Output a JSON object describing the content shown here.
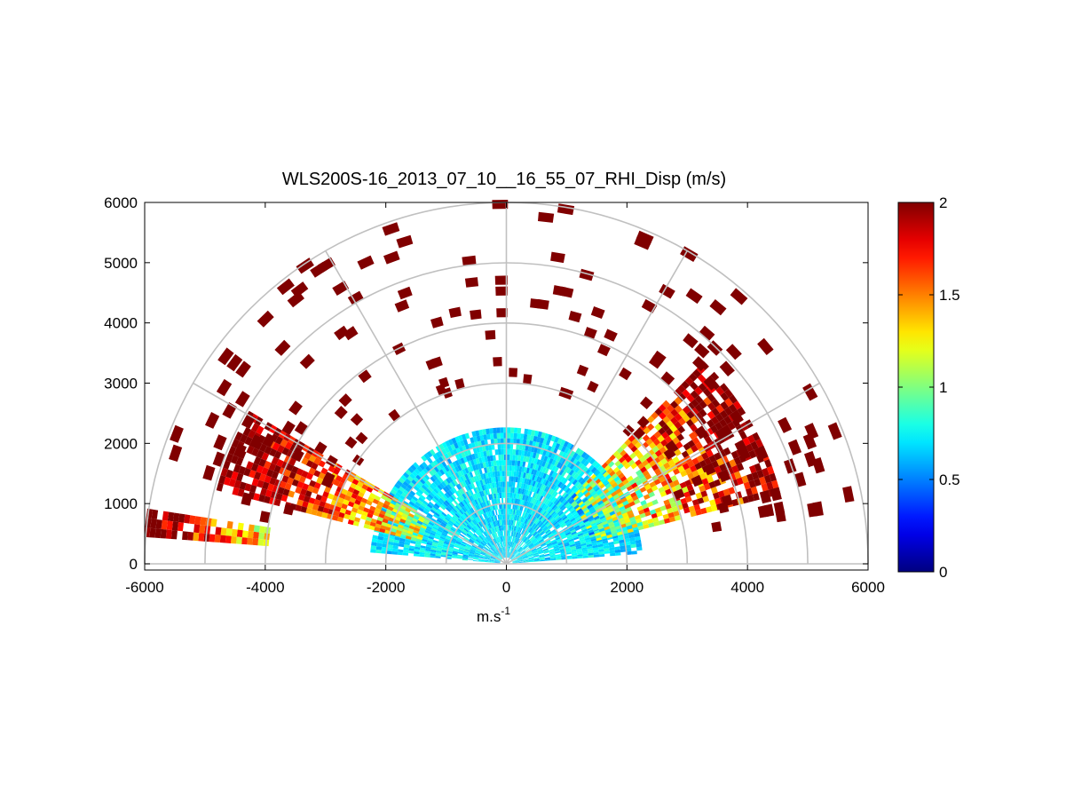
{
  "chart_data": {
    "type": "heatmap",
    "subtype": "polar-rhi-scan",
    "title": "WLS200S-16_2013_07_10__16_55_07_RHI_Disp (m/s)",
    "xlabel": "m.s",
    "xlabel_superscript": "-1",
    "ylabel": "",
    "xlim": [
      -6000,
      6000
    ],
    "ylim": [
      0,
      6000
    ],
    "x_ticks": [
      -6000,
      -4000,
      -2000,
      0,
      2000,
      4000,
      6000
    ],
    "y_ticks": [
      0,
      1000,
      2000,
      3000,
      4000,
      5000,
      6000
    ],
    "range_rings": [
      1000,
      2000,
      3000,
      4000,
      5000,
      6000
    ],
    "radial_lines_deg": [
      0,
      30,
      60,
      90,
      120,
      150,
      180
    ],
    "grid": true,
    "colorbar": {
      "colormap": "jet",
      "min": 0,
      "max": 2,
      "ticks": [
        0,
        0.5,
        1,
        1.5,
        2
      ],
      "tick_labels": [
        "0",
        "0.5",
        "1",
        "1.5",
        "2"
      ],
      "placement": "right"
    },
    "regions": [
      {
        "name": "near-field low elevations, both sides",
        "r_range": [
          150,
          2300
        ],
        "el_range": [
          5,
          175
        ],
        "value_range": [
          0.55,
          0.85
        ]
      },
      {
        "name": "right sector 15–45°",
        "r_range": [
          1500,
          4700
        ],
        "el_range": [
          15,
          45
        ],
        "value_range": [
          0.4,
          2.0
        ]
      },
      {
        "name": "left sector 150–166°",
        "r_range": [
          1500,
          5000
        ],
        "el_range": [
          150,
          166
        ],
        "value_range": [
          0.8,
          2.0
        ]
      },
      {
        "name": "left band 172–176°",
        "r_range": [
          4000,
          6000
        ],
        "el_range": [
          172,
          176
        ],
        "value_range": [
          0.9,
          2.0
        ]
      },
      {
        "name": "scattered high-altitude returns",
        "r_range": [
          3000,
          6000
        ],
        "el_range": [
          10,
          170
        ],
        "value_range": [
          2.0,
          2.0
        ]
      }
    ]
  }
}
